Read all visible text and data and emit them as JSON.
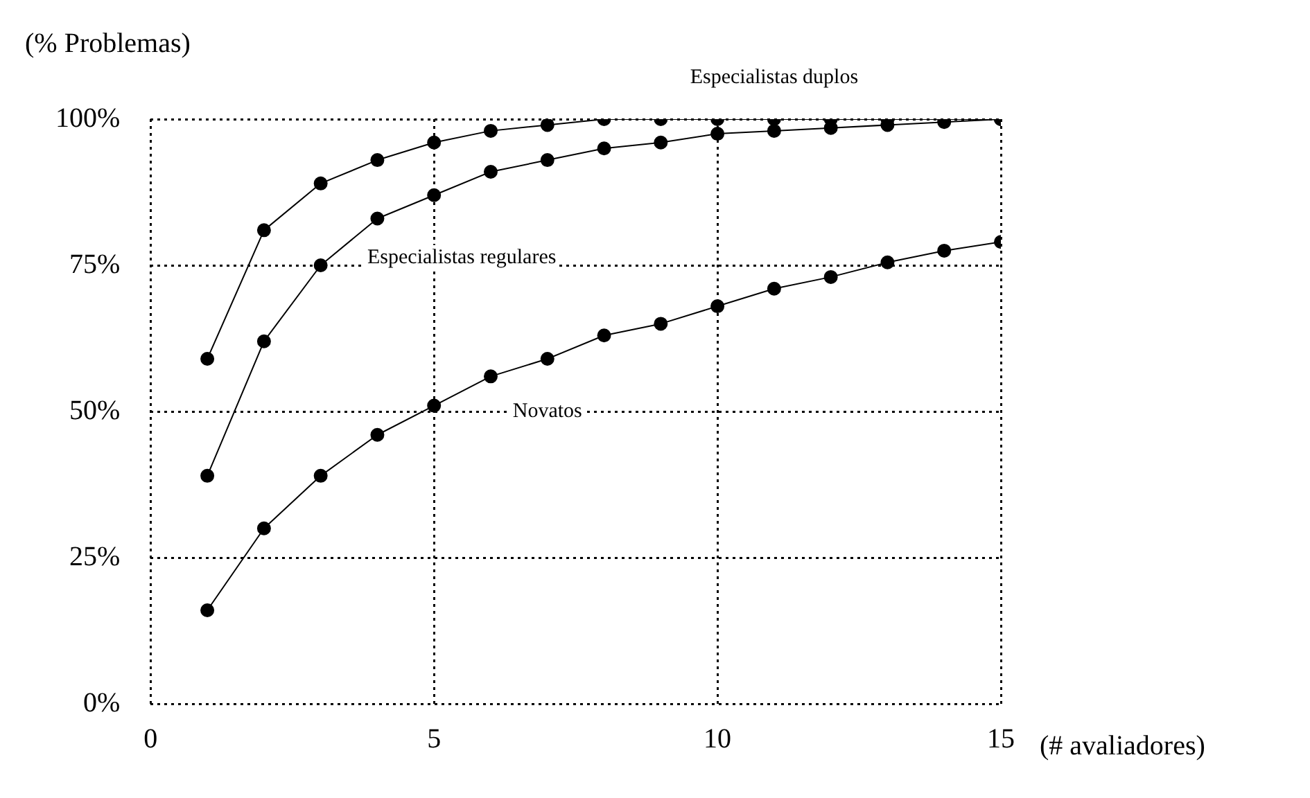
{
  "chart_data": {
    "type": "line",
    "xlabel": "(# avaliadores)",
    "ylabel": "(% Problemas)",
    "x": [
      1,
      2,
      3,
      4,
      5,
      6,
      7,
      8,
      9,
      10,
      11,
      12,
      13,
      14,
      15
    ],
    "series": [
      {
        "name": "Especialistas duplos",
        "color": "#000000",
        "values": [
          59,
          81,
          89,
          93,
          96,
          98,
          99,
          100,
          100,
          100,
          100,
          100,
          100,
          100,
          100
        ]
      },
      {
        "name": "Especialistas regulares",
        "color": "#000000",
        "values": [
          39,
          62,
          75,
          83,
          87,
          91,
          93,
          95,
          96,
          97.5,
          98,
          98.5,
          99,
          99.5,
          100
        ]
      },
      {
        "name": "Novatos",
        "color": "#000000",
        "values": [
          16,
          30,
          39,
          46,
          51,
          56,
          59,
          63,
          65,
          68,
          71,
          73,
          75.5,
          77.5,
          79
        ]
      }
    ],
    "xlim": [
      0,
      15
    ],
    "xticks": [
      0,
      5,
      10,
      15
    ],
    "ylim": [
      0,
      100
    ],
    "yticks": [
      {
        "value": 0,
        "label": "0%"
      },
      {
        "value": 25,
        "label": "25%"
      },
      {
        "value": 50,
        "label": "50%"
      },
      {
        "value": 75,
        "label": "75%"
      },
      {
        "value": 100,
        "label": "100%"
      }
    ],
    "grid": true,
    "legend": false,
    "marker": "circle",
    "line_style": "solid"
  }
}
